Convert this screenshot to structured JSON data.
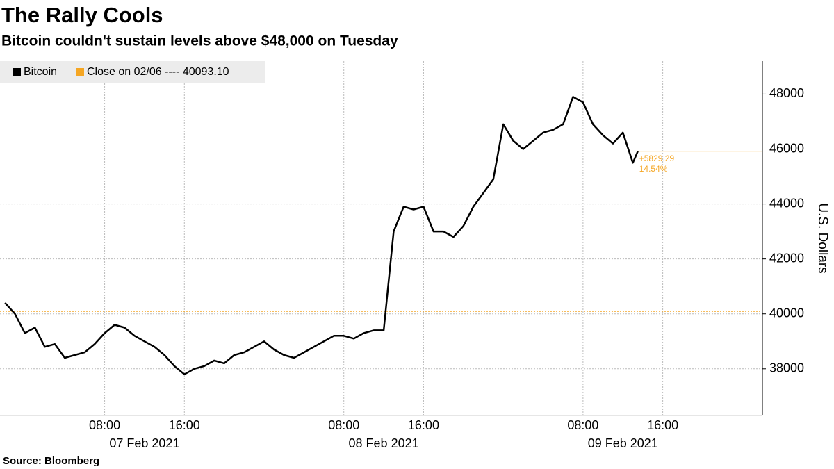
{
  "chart_data": {
    "type": "line",
    "title": "The Rally Cools",
    "subtitle": "Bitcoin couldn't sustain levels above $48,000 on Tuesday",
    "y_label": "U.S. Dollars",
    "source": "Source: Bloomberg",
    "x": [
      "2021-02-06T22:00",
      "2021-02-06T23:00",
      "2021-02-07T00:00",
      "2021-02-07T01:00",
      "2021-02-07T02:00",
      "2021-02-07T03:00",
      "2021-02-07T04:00",
      "2021-02-07T05:00",
      "2021-02-07T06:00",
      "2021-02-07T07:00",
      "2021-02-07T08:00",
      "2021-02-07T09:00",
      "2021-02-07T10:00",
      "2021-02-07T11:00",
      "2021-02-07T12:00",
      "2021-02-07T13:00",
      "2021-02-07T14:00",
      "2021-02-07T15:00",
      "2021-02-07T16:00",
      "2021-02-07T17:00",
      "2021-02-07T18:00",
      "2021-02-07T19:00",
      "2021-02-07T20:00",
      "2021-02-07T21:00",
      "2021-02-07T22:00",
      "2021-02-07T23:00",
      "2021-02-08T00:00",
      "2021-02-08T01:00",
      "2021-02-08T02:00",
      "2021-02-08T03:00",
      "2021-02-08T04:00",
      "2021-02-08T05:00",
      "2021-02-08T06:00",
      "2021-02-08T07:00",
      "2021-02-08T08:00",
      "2021-02-08T09:00",
      "2021-02-08T10:00",
      "2021-02-08T11:00",
      "2021-02-08T12:00",
      "2021-02-08T13:00",
      "2021-02-08T14:00",
      "2021-02-08T15:00",
      "2021-02-08T16:00",
      "2021-02-08T17:00",
      "2021-02-08T18:00",
      "2021-02-08T19:00",
      "2021-02-08T20:00",
      "2021-02-08T21:00",
      "2021-02-08T22:00",
      "2021-02-08T23:00",
      "2021-02-09T00:00",
      "2021-02-09T01:00",
      "2021-02-09T02:00",
      "2021-02-09T03:00",
      "2021-02-09T04:00",
      "2021-02-09T05:00",
      "2021-02-09T06:00",
      "2021-02-09T07:00",
      "2021-02-09T08:00",
      "2021-02-09T09:00",
      "2021-02-09T10:00",
      "2021-02-09T11:00",
      "2021-02-09T12:00",
      "2021-02-09T13:00",
      "2021-02-09T13:30"
    ],
    "series": [
      {
        "name": "Bitcoin",
        "color": "#000000",
        "values": [
          40400,
          40000,
          39300,
          39500,
          38800,
          38900,
          38400,
          38500,
          38600,
          38900,
          39300,
          39600,
          39500,
          39200,
          39000,
          38800,
          38500,
          38100,
          37800,
          38000,
          38100,
          38300,
          38200,
          38500,
          38600,
          38800,
          39000,
          38700,
          38500,
          38400,
          38600,
          38800,
          39000,
          39200,
          39200,
          39100,
          39300,
          39400,
          39400,
          43000,
          43900,
          43800,
          43900,
          43000,
          43000,
          42800,
          43200,
          43900,
          44400,
          44900,
          46900,
          46300,
          46000,
          46300,
          46600,
          46700,
          46900,
          47900,
          47700,
          46900,
          46500,
          46200,
          46600,
          45500,
          45922.39
        ]
      }
    ],
    "reference_line": {
      "name": "Close on 02/06 ---- 40093.10",
      "value": 40093.1,
      "color": "#f5a623"
    },
    "last_change_labels": [
      "+5829.29",
      "14.54%"
    ],
    "last_line_color": "#f5a623",
    "xlim": [
      "2021-02-06T21:30",
      "2021-02-10T02:00"
    ],
    "xticks": [
      {
        "value": "2021-02-07T08:00",
        "label": "08:00"
      },
      {
        "value": "2021-02-07T16:00",
        "label": "16:00"
      },
      {
        "value": "2021-02-08T08:00",
        "label": "08:00"
      },
      {
        "value": "2021-02-08T16:00",
        "label": "16:00"
      },
      {
        "value": "2021-02-09T08:00",
        "label": "08:00"
      },
      {
        "value": "2021-02-09T16:00",
        "label": "16:00"
      }
    ],
    "date_labels": [
      {
        "value": "2021-02-07T12:00",
        "label": "07 Feb 2021"
      },
      {
        "value": "2021-02-08T12:00",
        "label": "08 Feb 2021"
      },
      {
        "value": "2021-02-09T12:00",
        "label": "09 Feb 2021"
      }
    ],
    "ylim": [
      36300,
      49200
    ],
    "yticks": [
      38000,
      40000,
      42000,
      44000,
      46000,
      48000
    ],
    "grid": true
  }
}
